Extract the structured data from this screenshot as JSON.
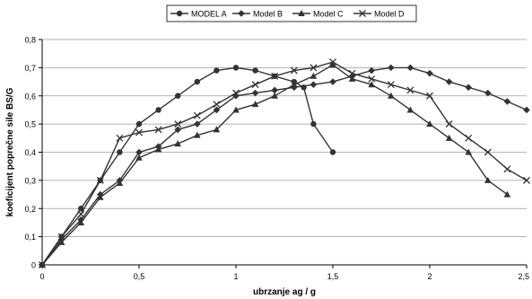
{
  "chart_data": {
    "type": "line",
    "xlabel": "ubrzanje ag / g",
    "ylabel": "koeficijent poprečne sile  BS/G",
    "xlim": [
      0,
      2.5
    ],
    "ylim": [
      0,
      0.8
    ],
    "x_ticks": [
      0,
      0.5,
      1,
      1.5,
      2,
      2.5
    ],
    "x_tick_labels": [
      "0",
      "0,5",
      "1",
      "1,5",
      "2",
      "2,5"
    ],
    "y_ticks": [
      0,
      0.1,
      0.2,
      0.3,
      0.4,
      0.5,
      0.6,
      0.7,
      0.8
    ],
    "y_tick_labels": [
      "0",
      "0,1",
      "0,2",
      "0,3",
      "0,4",
      "0,5",
      "0,6",
      "0,7",
      "0,8"
    ],
    "grid": "horizontal",
    "legend_position": "top-center",
    "series": [
      {
        "name": "MODEL A",
        "marker": "circle",
        "color": "#333333",
        "points": [
          [
            0,
            0
          ],
          [
            0.1,
            0.1
          ],
          [
            0.2,
            0.2
          ],
          [
            0.3,
            0.3
          ],
          [
            0.4,
            0.4
          ],
          [
            0.5,
            0.5
          ],
          [
            0.6,
            0.55
          ],
          [
            0.7,
            0.6
          ],
          [
            0.8,
            0.65
          ],
          [
            0.9,
            0.69
          ],
          [
            1.0,
            0.7
          ],
          [
            1.1,
            0.69
          ],
          [
            1.2,
            0.67
          ],
          [
            1.3,
            0.65
          ],
          [
            1.35,
            0.63
          ],
          [
            1.4,
            0.5
          ],
          [
            1.5,
            0.4
          ]
        ]
      },
      {
        "name": "Model B",
        "marker": "diamond",
        "color": "#333333",
        "points": [
          [
            0,
            0
          ],
          [
            0.1,
            0.09
          ],
          [
            0.2,
            0.16
          ],
          [
            0.3,
            0.25
          ],
          [
            0.4,
            0.3
          ],
          [
            0.5,
            0.4
          ],
          [
            0.6,
            0.42
          ],
          [
            0.7,
            0.48
          ],
          [
            0.8,
            0.5
          ],
          [
            0.9,
            0.55
          ],
          [
            1.0,
            0.6
          ],
          [
            1.1,
            0.61
          ],
          [
            1.2,
            0.62
          ],
          [
            1.3,
            0.63
          ],
          [
            1.4,
            0.64
          ],
          [
            1.5,
            0.65
          ],
          [
            1.6,
            0.67
          ],
          [
            1.7,
            0.69
          ],
          [
            1.8,
            0.7
          ],
          [
            1.9,
            0.7
          ],
          [
            2.0,
            0.68
          ],
          [
            2.1,
            0.65
          ],
          [
            2.2,
            0.63
          ],
          [
            2.3,
            0.61
          ],
          [
            2.4,
            0.58
          ],
          [
            2.5,
            0.55
          ]
        ]
      },
      {
        "name": "Model C",
        "marker": "triangle",
        "color": "#333333",
        "points": [
          [
            0,
            0
          ],
          [
            0.1,
            0.08
          ],
          [
            0.2,
            0.15
          ],
          [
            0.3,
            0.24
          ],
          [
            0.4,
            0.29
          ],
          [
            0.5,
            0.38
          ],
          [
            0.6,
            0.41
          ],
          [
            0.7,
            0.43
          ],
          [
            0.8,
            0.46
          ],
          [
            0.9,
            0.48
          ],
          [
            1.0,
            0.55
          ],
          [
            1.1,
            0.57
          ],
          [
            1.2,
            0.6
          ],
          [
            1.3,
            0.64
          ],
          [
            1.4,
            0.67
          ],
          [
            1.5,
            0.71
          ],
          [
            1.6,
            0.66
          ],
          [
            1.7,
            0.64
          ],
          [
            1.8,
            0.6
          ],
          [
            1.9,
            0.55
          ],
          [
            2.0,
            0.5
          ],
          [
            2.1,
            0.45
          ],
          [
            2.2,
            0.4
          ],
          [
            2.3,
            0.3
          ],
          [
            2.4,
            0.25
          ]
        ]
      },
      {
        "name": "Model D",
        "marker": "x",
        "color": "#333333",
        "points": [
          [
            0,
            0
          ],
          [
            0.1,
            0.1
          ],
          [
            0.2,
            0.18
          ],
          [
            0.3,
            0.3
          ],
          [
            0.4,
            0.45
          ],
          [
            0.5,
            0.47
          ],
          [
            0.6,
            0.48
          ],
          [
            0.7,
            0.5
          ],
          [
            0.8,
            0.53
          ],
          [
            0.9,
            0.57
          ],
          [
            1.0,
            0.61
          ],
          [
            1.1,
            0.64
          ],
          [
            1.2,
            0.67
          ],
          [
            1.3,
            0.69
          ],
          [
            1.4,
            0.7
          ],
          [
            1.5,
            0.72
          ],
          [
            1.6,
            0.68
          ],
          [
            1.7,
            0.66
          ],
          [
            1.8,
            0.64
          ],
          [
            1.9,
            0.62
          ],
          [
            2.0,
            0.6
          ],
          [
            2.1,
            0.5
          ],
          [
            2.2,
            0.45
          ],
          [
            2.3,
            0.4
          ],
          [
            2.4,
            0.34
          ],
          [
            2.5,
            0.3
          ]
        ]
      }
    ]
  }
}
